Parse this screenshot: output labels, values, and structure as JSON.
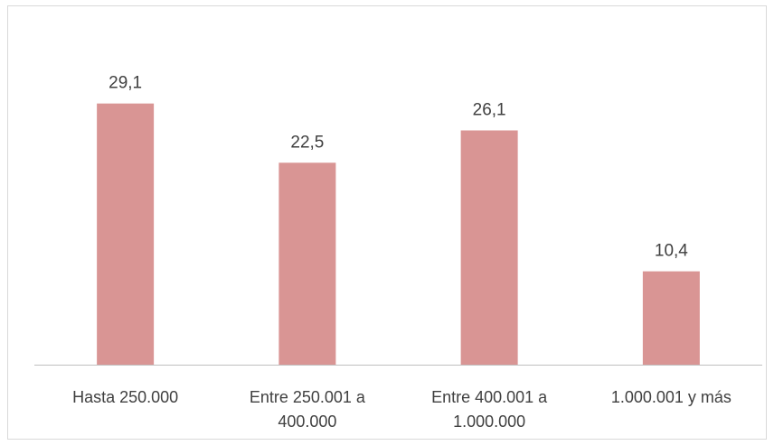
{
  "chart_data": {
    "type": "bar",
    "categories": [
      [
        "Hasta 250.000"
      ],
      [
        "Entre 250.001 a",
        "400.000"
      ],
      [
        "Entre 400.001 a",
        "1.000.000"
      ],
      [
        "1.000.001 y más"
      ]
    ],
    "values": [
      29.1,
      22.5,
      26.1,
      10.4
    ],
    "value_labels": [
      "29,1",
      "22,5",
      "26,1",
      "10,4"
    ],
    "bar_color": "#d99594",
    "axis_color": "#bfbfbf",
    "ylim": [
      0,
      35
    ],
    "grid": false,
    "legend": "none"
  }
}
